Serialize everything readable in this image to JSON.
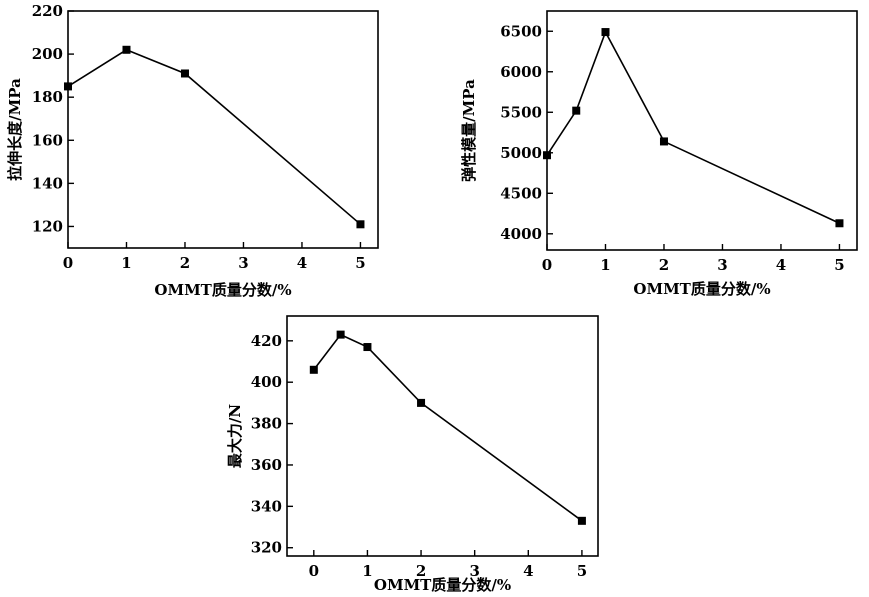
{
  "chart_data": [
    {
      "type": "line",
      "x": [
        0,
        1,
        2,
        5
      ],
      "values": [
        185,
        202,
        191,
        121
      ],
      "xlabel": "OMMT质量分数/%",
      "ylabel": "拉伸长度/MPa",
      "xlim": [
        0,
        5.3
      ],
      "ylim": [
        110,
        220
      ],
      "xticks": [
        0,
        1,
        2,
        3,
        4,
        5
      ],
      "yticks": [
        120,
        140,
        160,
        180,
        200,
        220
      ],
      "marker": "square",
      "grid": false
    },
    {
      "type": "line",
      "x": [
        0,
        0.5,
        1,
        2,
        5
      ],
      "values": [
        4970,
        5520,
        6490,
        5140,
        4130
      ],
      "xlabel": "OMMT质量分数/%",
      "ylabel": "弹性模量/MPa",
      "xlim": [
        0,
        5.3
      ],
      "ylim": [
        3800,
        6750
      ],
      "xticks": [
        0,
        1,
        2,
        3,
        4,
        5
      ],
      "yticks": [
        4000,
        4500,
        5000,
        5500,
        6000,
        6500
      ],
      "marker": "square",
      "grid": false
    },
    {
      "type": "line",
      "x": [
        0,
        0.5,
        1,
        2,
        5
      ],
      "values": [
        406,
        423,
        417,
        390,
        333
      ],
      "xlabel": "OMMT质量分数/%",
      "ylabel": "最大力/N",
      "xlim": [
        -0.5,
        5.3
      ],
      "ylim": [
        316,
        432
      ],
      "xticks": [
        0,
        1,
        2,
        3,
        4,
        5
      ],
      "yticks": [
        320,
        340,
        360,
        380,
        400,
        420
      ],
      "marker": "square",
      "grid": false
    }
  ]
}
